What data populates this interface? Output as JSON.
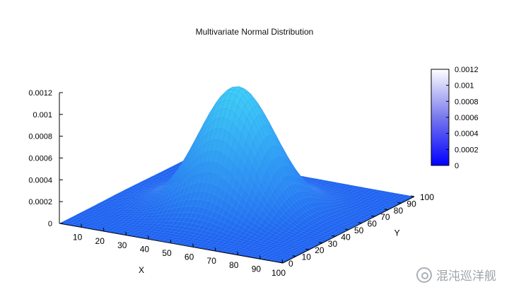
{
  "chart_data": {
    "type": "surface",
    "title": "Multivariate Normal Distribution",
    "xlabel": "X",
    "ylabel": "Y",
    "zlabel": "",
    "x_range": [
      0,
      100
    ],
    "y_range": [
      0,
      100
    ],
    "z_range": [
      0,
      0.0012
    ],
    "x_ticks": [
      "10",
      "20",
      "30",
      "40",
      "50",
      "60",
      "70",
      "80",
      "90",
      "100"
    ],
    "y_ticks": [
      "0",
      "10",
      "20",
      "30",
      "40",
      "50",
      "60",
      "70",
      "80",
      "90",
      "100"
    ],
    "z_ticks": [
      "0",
      "0.0002",
      "0.0004",
      "0.0006",
      "0.0008",
      "0.001",
      "0.0012"
    ],
    "colorbar_ticks": [
      "0",
      "0.0002",
      "0.0004",
      "0.0006",
      "0.0008",
      "0.001",
      "0.0012"
    ],
    "colorbar_range": [
      0,
      0.0012
    ],
    "distribution": {
      "mean_x": 50,
      "mean_y": 50,
      "peak_value": 0.00113,
      "sigma_x": 15,
      "sigma_y": 15
    },
    "grid": false,
    "colors": {
      "low": "#0000ff",
      "mid": "#6a6af0",
      "high": "#ffffff",
      "surface_base": "#1e5ef0",
      "surface_peak": "#3fd0f5",
      "mesh": "#3a8cf5"
    }
  },
  "watermark": {
    "text": "混沌巡洋舰"
  }
}
